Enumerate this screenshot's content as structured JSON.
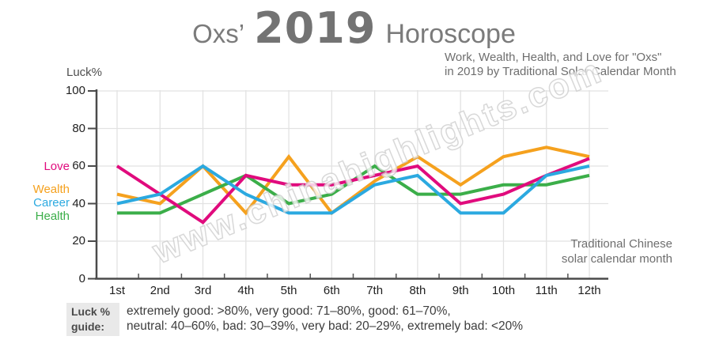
{
  "title": {
    "prefix": "Oxs’",
    "year": "2019",
    "suffix": "Horoscope"
  },
  "subtitle": {
    "line1": "Work, Wealth, Health, and Love for \"Oxs\"",
    "line2": "in 2019 by Traditional Solar Calendar Month"
  },
  "y_axis_title": "Luck%",
  "axis_note": {
    "line1": "Traditional Chinese",
    "line2": "solar calendar month"
  },
  "watermark": "www.chinahighlights.com",
  "guide": {
    "label_line1": "Luck %",
    "label_line2": "guide:",
    "text_line1": "extremely good: >80%, very good: 71–80%, good: 61–70%,",
    "text_line2": "neutral: 40–60%, bad: 30–39%, very bad: 20–29%, extremely bad: <20%"
  },
  "chart_data": {
    "type": "line",
    "title": "Oxs’ 2019 Horoscope",
    "categories": [
      "1st",
      "2nd",
      "3rd",
      "4th",
      "5th",
      "6th",
      "7th",
      "8th",
      "9th",
      "10th",
      "11th",
      "12th"
    ],
    "series": [
      {
        "name": "Love",
        "color": "#e00b7d",
        "values": [
          60,
          45,
          30,
          55,
          50,
          50,
          55,
          60,
          40,
          45,
          55,
          64
        ]
      },
      {
        "name": "Wealth",
        "color": "#f5a11e",
        "values": [
          45,
          40,
          60,
          35,
          65,
          35,
          52,
          65,
          50,
          65,
          70,
          65
        ]
      },
      {
        "name": "Career",
        "color": "#2ba9e0",
        "values": [
          40,
          45,
          60,
          45,
          35,
          35,
          50,
          55,
          35,
          35,
          55,
          60
        ]
      },
      {
        "name": "Health",
        "color": "#3bae49",
        "values": [
          35,
          35,
          45,
          55,
          40,
          45,
          60,
          45,
          45,
          50,
          50,
          55
        ]
      }
    ],
    "xlabel": "Traditional Chinese solar calendar month",
    "ylabel": "Luck%",
    "ylim": [
      0,
      100
    ],
    "yticks": [
      0,
      20,
      40,
      60,
      80,
      100
    ],
    "grid": true,
    "legend_position": "left"
  },
  "style": {
    "grid_color": "#e2e2e2",
    "axis_color": "#4a4a4a",
    "tick_text_color": "#1f1f1f",
    "muted_text_color": "#6e6e6e",
    "title_color": "#7b7b7b"
  }
}
